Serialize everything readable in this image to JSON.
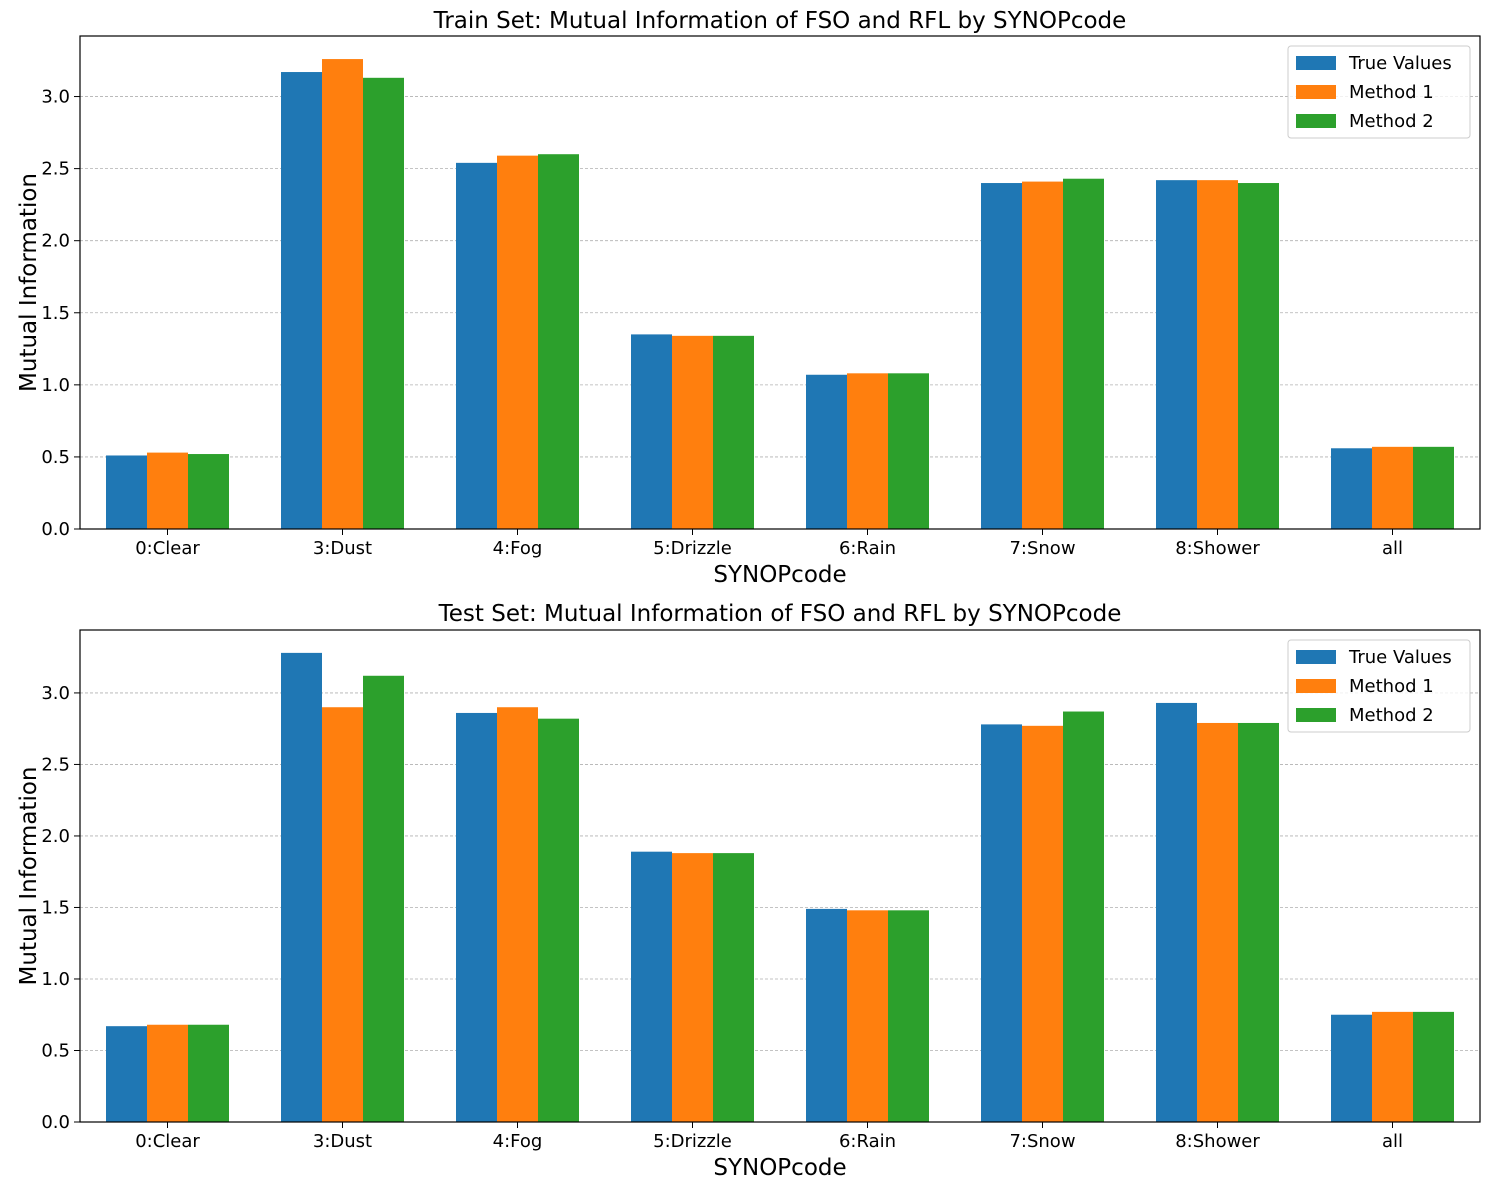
{
  "chart_data": [
    {
      "type": "bar",
      "title": "Train Set: Mutual Information of FSO and RFL by SYNOPcode",
      "xlabel": "SYNOPcode",
      "ylabel": "Mutual Information",
      "categories": [
        "0:Clear",
        "3:Dust",
        "4:Fog",
        "5:Drizzle",
        "6:Rain",
        "7:Snow",
        "8:Shower",
        "all"
      ],
      "series": [
        {
          "name": "True Values",
          "color": "#1f77b4",
          "values": [
            0.51,
            3.17,
            2.54,
            1.35,
            1.07,
            2.4,
            2.42,
            0.56
          ]
        },
        {
          "name": "Method 1",
          "color": "#ff7f0e",
          "values": [
            0.53,
            3.26,
            2.59,
            1.34,
            1.08,
            2.41,
            2.42,
            0.57
          ]
        },
        {
          "name": "Method 2",
          "color": "#2ca02c",
          "values": [
            0.52,
            3.13,
            2.6,
            1.34,
            1.08,
            2.43,
            2.4,
            0.57
          ]
        }
      ],
      "ylim": [
        0,
        3.42
      ],
      "yticks": [
        "0.0",
        "0.5",
        "1.0",
        "1.5",
        "2.0",
        "2.5",
        "3.0"
      ],
      "grid": "y-dashed",
      "legend_position": "top-right"
    },
    {
      "type": "bar",
      "title": "Test Set: Mutual Information of FSO and RFL by SYNOPcode",
      "xlabel": "SYNOPcode",
      "ylabel": "Mutual Information",
      "categories": [
        "0:Clear",
        "3:Dust",
        "4:Fog",
        "5:Drizzle",
        "6:Rain",
        "7:Snow",
        "8:Shower",
        "all"
      ],
      "series": [
        {
          "name": "True Values",
          "color": "#1f77b4",
          "values": [
            0.67,
            3.28,
            2.86,
            1.89,
            1.49,
            2.78,
            2.93,
            0.75
          ]
        },
        {
          "name": "Method 1",
          "color": "#ff7f0e",
          "values": [
            0.68,
            2.9,
            2.9,
            1.88,
            1.48,
            2.77,
            2.79,
            0.77
          ]
        },
        {
          "name": "Method 2",
          "color": "#2ca02c",
          "values": [
            0.68,
            3.12,
            2.82,
            1.88,
            1.48,
            2.87,
            2.79,
            0.77
          ]
        }
      ],
      "ylim": [
        0,
        3.44
      ],
      "yticks": [
        "0.0",
        "0.5",
        "1.0",
        "1.5",
        "2.0",
        "2.5",
        "3.0"
      ],
      "grid": "y-dashed",
      "legend_position": "top-right"
    }
  ]
}
